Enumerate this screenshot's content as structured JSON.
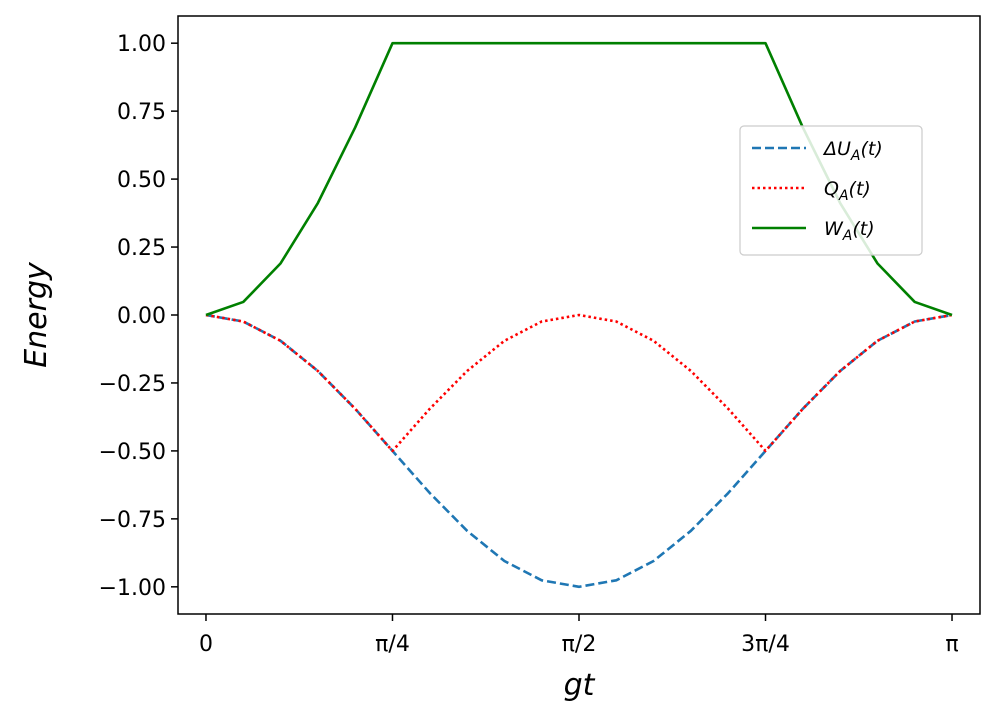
{
  "chart_data": {
    "type": "line",
    "xlabel": "gt",
    "ylabel": "Energy",
    "xlim": [
      -0.1178,
      3.2594
    ],
    "ylim": [
      -1.1,
      1.1
    ],
    "grid": false,
    "legend_position": "center-right",
    "x_ticks": [
      {
        "value": 0,
        "label": "0"
      },
      {
        "value": 0.7854,
        "label": "π/4"
      },
      {
        "value": 1.5708,
        "label": "π/2"
      },
      {
        "value": 2.3562,
        "label": "3π/4"
      },
      {
        "value": 3.1416,
        "label": "π"
      }
    ],
    "y_ticks": [
      {
        "value": 1.0,
        "label": "1.00"
      },
      {
        "value": 0.75,
        "label": "0.75"
      },
      {
        "value": 0.5,
        "label": "0.50"
      },
      {
        "value": 0.25,
        "label": "0.25"
      },
      {
        "value": 0.0,
        "label": "0.00"
      },
      {
        "value": -0.25,
        "label": "−0.25"
      },
      {
        "value": -0.5,
        "label": "−0.50"
      },
      {
        "value": -0.75,
        "label": "−0.75"
      },
      {
        "value": -1.0,
        "label": "−1.00"
      }
    ],
    "x": [
      0,
      0.1571,
      0.3142,
      0.4712,
      0.6283,
      0.7854,
      0.9425,
      1.0996,
      1.2566,
      1.4137,
      1.5708,
      1.7279,
      1.885,
      2.042,
      2.1991,
      2.3562,
      2.5133,
      2.6704,
      2.8274,
      2.9845,
      3.1416
    ],
    "series": [
      {
        "name": "ΔU_A(t)",
        "color": "#1f77b4",
        "dash": "dashed",
        "values": [
          0,
          -0.024,
          -0.095,
          -0.206,
          -0.345,
          -0.5,
          -0.655,
          -0.794,
          -0.905,
          -0.976,
          -1.0,
          -0.976,
          -0.905,
          -0.794,
          -0.655,
          -0.5,
          -0.345,
          -0.206,
          -0.095,
          -0.024,
          0
        ]
      },
      {
        "name": "Q_A(t)",
        "color": "#ff0000",
        "dash": "dotted",
        "values": [
          0,
          -0.024,
          -0.095,
          -0.206,
          -0.345,
          -0.5,
          -0.345,
          -0.206,
          -0.095,
          -0.024,
          0,
          -0.024,
          -0.095,
          -0.206,
          -0.345,
          -0.5,
          -0.345,
          -0.206,
          -0.095,
          -0.024,
          0
        ]
      },
      {
        "name": "W_A(t)",
        "color": "#008000",
        "dash": "solid",
        "values": [
          0,
          0.048,
          0.19,
          0.412,
          0.69,
          1.0,
          1.0,
          1.0,
          1.0,
          1.0,
          1.0,
          1.0,
          1.0,
          1.0,
          1.0,
          1.0,
          0.69,
          0.412,
          0.19,
          0.048,
          0
        ]
      }
    ],
    "legend": [
      {
        "base": "ΔU",
        "sub": "A",
        "suffix": "(t)"
      },
      {
        "base": "Q",
        "sub": "A",
        "suffix": "(t)"
      },
      {
        "base": "W",
        "sub": "A",
        "suffix": "(t)"
      }
    ]
  }
}
